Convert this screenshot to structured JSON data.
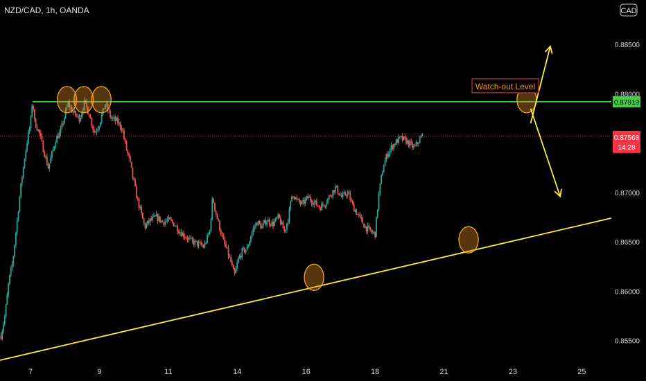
{
  "chart_data": {
    "type": "candlestick",
    "title": "NZD/CAD, 1h, OANDA",
    "currency": "CAD",
    "y_ticks": [
      "0.88500",
      "0.88000",
      "0.87500",
      "0.87000",
      "0.86500",
      "0.86000",
      "0.85500"
    ],
    "ylim": [
      0.853,
      0.8895
    ],
    "x_ticks": [
      "7",
      "9",
      "11",
      "14",
      "16",
      "18",
      "21",
      "23",
      "25"
    ],
    "x_tick_index": [
      0,
      7,
      14,
      21,
      28,
      35,
      42,
      49,
      56
    ],
    "xlim": [
      -3.1,
      59
    ],
    "horizontal_level": {
      "value": 0.87919,
      "label": "0.87919",
      "annotation": "Watch-out Level",
      "color": "#44ee44"
    },
    "current_price": {
      "value": 0.87568,
      "label": "0.87568",
      "countdown": "14:28",
      "color": "#f23645"
    },
    "support_line": {
      "from": [
        -3.1,
        0.853
      ],
      "to": [
        59,
        0.8674
      ],
      "color": "#ffeb3b"
    },
    "touch_points": [
      {
        "x": 3.7,
        "y": 0.8794
      },
      {
        "x": 5.4,
        "y": 0.8794
      },
      {
        "x": 7.2,
        "y": 0.8794
      },
      {
        "x": 28.8,
        "y": 0.8614
      },
      {
        "x": 44.5,
        "y": 0.8652
      },
      {
        "x": 50.4,
        "y": 0.8794
      }
    ],
    "projection_up": {
      "from": [
        50.8,
        0.877
      ],
      "to": [
        52.8,
        0.8848
      ]
    },
    "projection_down": {
      "from": [
        50.8,
        0.8785
      ],
      "to": [
        53.8,
        0.8696
      ]
    },
    "colors": {
      "up": "#26a69a",
      "down": "#ef5350",
      "background": "#000000"
    },
    "price_path": [
      [
        -3.0,
        0.8555
      ],
      [
        -2.6,
        0.8575
      ],
      [
        -2.2,
        0.861
      ],
      [
        -1.8,
        0.863
      ],
      [
        -1.4,
        0.8668
      ],
      [
        -1.0,
        0.8705
      ],
      [
        -0.6,
        0.8735
      ],
      [
        -0.3,
        0.8755
      ],
      [
        0.0,
        0.877
      ],
      [
        0.2,
        0.8795
      ],
      [
        0.4,
        0.8772
      ],
      [
        0.9,
        0.876
      ],
      [
        1.4,
        0.874
      ],
      [
        1.8,
        0.8725
      ],
      [
        2.2,
        0.874
      ],
      [
        2.6,
        0.8755
      ],
      [
        3.0,
        0.876
      ],
      [
        3.4,
        0.8775
      ],
      [
        3.8,
        0.879
      ],
      [
        4.4,
        0.878
      ],
      [
        5.0,
        0.8775
      ],
      [
        5.5,
        0.8792
      ],
      [
        6.0,
        0.8778
      ],
      [
        6.5,
        0.876
      ],
      [
        7.0,
        0.877
      ],
      [
        7.6,
        0.879
      ],
      [
        8.2,
        0.8775
      ],
      [
        8.8,
        0.8772
      ],
      [
        9.3,
        0.8765
      ],
      [
        9.7,
        0.8745
      ],
      [
        10.0,
        0.8735
      ],
      [
        10.4,
        0.8715
      ],
      [
        10.8,
        0.8695
      ],
      [
        11.2,
        0.868
      ],
      [
        11.6,
        0.8665
      ],
      [
        12.2,
        0.8672
      ],
      [
        12.8,
        0.8675
      ],
      [
        13.4,
        0.867
      ],
      [
        14.0,
        0.8672
      ],
      [
        14.6,
        0.8668
      ],
      [
        15.2,
        0.866
      ],
      [
        15.8,
        0.8655
      ],
      [
        16.4,
        0.865
      ],
      [
        17.0,
        0.8648
      ],
      [
        17.6,
        0.8645
      ],
      [
        18.2,
        0.866
      ],
      [
        18.5,
        0.8695
      ],
      [
        18.8,
        0.868
      ],
      [
        19.2,
        0.8665
      ],
      [
        19.6,
        0.865
      ],
      [
        20.0,
        0.864
      ],
      [
        20.4,
        0.8628
      ],
      [
        20.7,
        0.8615
      ],
      [
        21.1,
        0.8632
      ],
      [
        21.5,
        0.864
      ],
      [
        22.0,
        0.8643
      ],
      [
        22.5,
        0.866
      ],
      [
        23.0,
        0.867
      ],
      [
        23.5,
        0.8665
      ],
      [
        24.0,
        0.8672
      ],
      [
        24.6,
        0.8668
      ],
      [
        25.2,
        0.8675
      ],
      [
        25.8,
        0.866
      ],
      [
        26.2,
        0.8675
      ],
      [
        26.6,
        0.87
      ],
      [
        27.0,
        0.8692
      ],
      [
        27.6,
        0.8688
      ],
      [
        28.2,
        0.8695
      ],
      [
        28.8,
        0.869
      ],
      [
        29.4,
        0.8685
      ],
      [
        30.0,
        0.869
      ],
      [
        30.6,
        0.87
      ],
      [
        31.0,
        0.8705
      ],
      [
        31.6,
        0.8695
      ],
      [
        32.2,
        0.87
      ],
      [
        32.8,
        0.8685
      ],
      [
        33.4,
        0.8675
      ],
      [
        34.0,
        0.8665
      ],
      [
        34.6,
        0.866
      ],
      [
        35.0,
        0.8658
      ],
      [
        35.4,
        0.87
      ],
      [
        35.8,
        0.8725
      ],
      [
        36.2,
        0.8738
      ],
      [
        36.6,
        0.8745
      ],
      [
        37.0,
        0.875
      ],
      [
        37.6,
        0.8755
      ],
      [
        38.2,
        0.8752
      ],
      [
        38.6,
        0.8748
      ],
      [
        39.0,
        0.8745
      ],
      [
        39.4,
        0.8752
      ],
      [
        39.8,
        0.8757
      ]
    ]
  }
}
